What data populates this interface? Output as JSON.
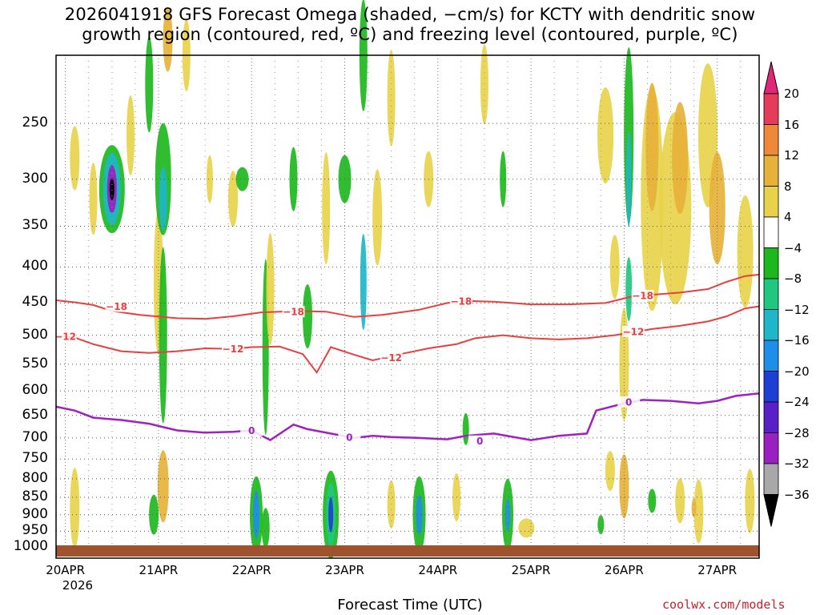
{
  "chart_data": {
    "type": "heatmap",
    "title_line1": "2026041918 GFS Forecast Omega (shaded, −cm/s) for KCTY with dendritic snow",
    "title_line2": "growth region (contoured, red, ºC) and freezing level (contoured, purple, ºC)",
    "xlabel": "Forecast Time (UTC)",
    "x_ticks": [
      "20APR",
      "21APR",
      "22APR",
      "23APR",
      "24APR",
      "25APR",
      "26APR",
      "27APR"
    ],
    "x_year": "2026",
    "xlim_days": [
      -0.1,
      7.45
    ],
    "y_ticks": [
      "250",
      "300",
      "350",
      "400",
      "450",
      "500",
      "550",
      "600",
      "650",
      "700",
      "750",
      "800",
      "850",
      "900",
      "950",
      "1000"
    ],
    "y_tick_values": [
      250,
      300,
      350,
      400,
      450,
      500,
      550,
      600,
      650,
      700,
      750,
      800,
      850,
      900,
      950,
      1000
    ],
    "ylim_hpa": [
      200,
      1000
    ],
    "colorbar_ticks": [
      "20",
      "16",
      "12",
      "8",
      "4",
      "−4",
      "−8",
      "−12",
      "−16",
      "−20",
      "−24",
      "−28",
      "−32",
      "−36"
    ],
    "colorbar_colors": [
      "#e53c5a",
      "#f0883a",
      "#e6b23a",
      "#e8d24a",
      "#ffffff",
      "#1db81d",
      "#1fc780",
      "#1fb6c9",
      "#1e8ee8",
      "#1e3fd6",
      "#5a20c8",
      "#9a20c0",
      "#a8a8a8"
    ],
    "colorbar_top_color": "#e0287a",
    "colorbar_bottom_color": "#000000",
    "contour_dgz_color": "#e84040",
    "contour_freezing_color": "#a020c0",
    "contour_labels": {
      "m18": "−18",
      "m12": "−12",
      "zero": "0"
    },
    "contour_minus18": [
      [
        -0.1,
        446
      ],
      [
        0.1,
        449
      ],
      [
        0.3,
        453
      ],
      [
        0.5,
        462
      ],
      [
        0.8,
        468
      ],
      [
        1.2,
        473
      ],
      [
        1.5,
        474
      ],
      [
        1.8,
        470
      ],
      [
        2.1,
        464
      ],
      [
        2.5,
        462
      ],
      [
        2.8,
        463
      ],
      [
        3.1,
        471
      ],
      [
        3.4,
        468
      ],
      [
        3.8,
        460
      ],
      [
        4.1,
        450
      ],
      [
        4.3,
        447
      ],
      [
        4.6,
        448
      ],
      [
        5.0,
        452
      ],
      [
        5.4,
        452
      ],
      [
        5.8,
        450
      ],
      [
        6.1,
        440
      ],
      [
        6.3,
        438
      ],
      [
        6.6,
        435
      ],
      [
        6.9,
        430
      ],
      [
        7.1,
        420
      ],
      [
        7.3,
        412
      ],
      [
        7.45,
        410
      ]
    ],
    "contour_minus12": [
      [
        -0.1,
        500
      ],
      [
        0.1,
        504
      ],
      [
        0.3,
        515
      ],
      [
        0.6,
        527
      ],
      [
        0.9,
        530
      ],
      [
        1.2,
        527
      ],
      [
        1.5,
        522
      ],
      [
        1.8,
        523
      ],
      [
        2.0,
        520
      ],
      [
        2.3,
        519
      ],
      [
        2.55,
        532
      ],
      [
        2.7,
        565
      ],
      [
        2.85,
        520
      ],
      [
        3.1,
        533
      ],
      [
        3.3,
        543
      ],
      [
        3.6,
        532
      ],
      [
        3.9,
        522
      ],
      [
        4.2,
        515
      ],
      [
        4.4,
        505
      ],
      [
        4.7,
        500
      ],
      [
        5.0,
        505
      ],
      [
        5.3,
        507
      ],
      [
        5.6,
        505
      ],
      [
        5.9,
        500
      ],
      [
        6.1,
        495
      ],
      [
        6.3,
        490
      ],
      [
        6.6,
        485
      ],
      [
        6.9,
        478
      ],
      [
        7.1,
        470
      ],
      [
        7.3,
        458
      ],
      [
        7.45,
        455
      ]
    ],
    "contour_zero": [
      [
        -0.1,
        632
      ],
      [
        0.1,
        640
      ],
      [
        0.3,
        655
      ],
      [
        0.6,
        660
      ],
      [
        0.9,
        668
      ],
      [
        1.2,
        683
      ],
      [
        1.5,
        688
      ],
      [
        1.8,
        686
      ],
      [
        2.0,
        683
      ],
      [
        2.2,
        705
      ],
      [
        2.45,
        670
      ],
      [
        2.6,
        680
      ],
      [
        2.9,
        692
      ],
      [
        3.1,
        700
      ],
      [
        3.3,
        695
      ],
      [
        3.5,
        698
      ],
      [
        3.8,
        700
      ],
      [
        4.1,
        703
      ],
      [
        4.3,
        695
      ],
      [
        4.6,
        690
      ],
      [
        5.0,
        705
      ],
      [
        5.3,
        695
      ],
      [
        5.6,
        690
      ],
      [
        5.7,
        640
      ],
      [
        6.0,
        625
      ],
      [
        6.2,
        618
      ],
      [
        6.5,
        620
      ],
      [
        6.8,
        625
      ],
      [
        7.0,
        620
      ],
      [
        7.2,
        610
      ],
      [
        7.45,
        605
      ]
    ]
  },
  "credit": "coolwx.com/models"
}
